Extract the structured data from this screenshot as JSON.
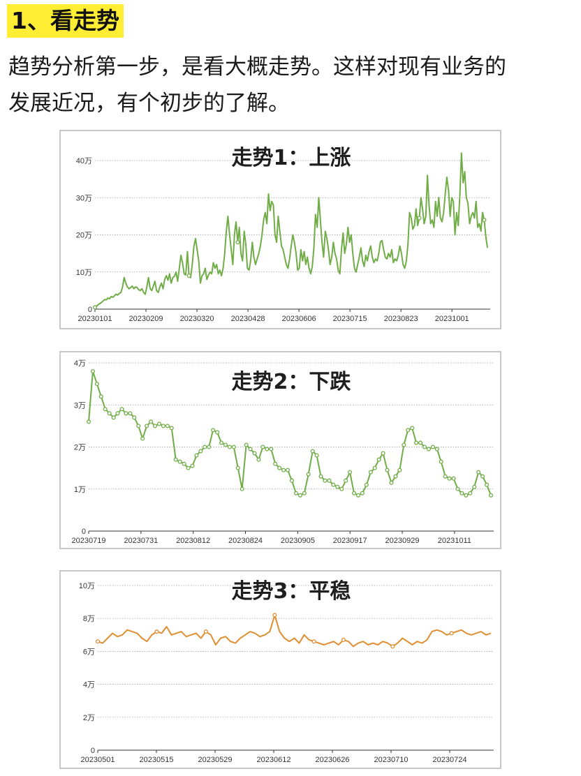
{
  "heading": "1、看走势",
  "intro": {
    "line1": "趋势分析第一步，是看大概走势。这样对现有业务的",
    "line2": "发展近况，有个初步的了解。"
  },
  "chart_data": [
    {
      "type": "line",
      "title": "走势1：上涨",
      "color": "#70ad47",
      "markers": "sparse",
      "ylim": [
        0,
        400000
      ],
      "yticks": [
        0,
        100000,
        200000,
        300000,
        400000
      ],
      "yticklabels": [
        "0",
        "10万",
        "20万",
        "30万",
        "40万"
      ],
      "xticklabels": [
        "20230101",
        "20230209",
        "20230320",
        "20230428",
        "20230606",
        "20230715",
        "20230823",
        "20231001"
      ],
      "grid": true,
      "values": [
        5000,
        8000,
        12000,
        15000,
        18000,
        22000,
        26000,
        25000,
        30000,
        28000,
        34000,
        32000,
        36000,
        40000,
        38000,
        42000,
        45000,
        60000,
        85000,
        70000,
        60000,
        55000,
        58000,
        62000,
        55000,
        60000,
        58000,
        52000,
        50000,
        55000,
        45000,
        40000,
        60000,
        85000,
        55000,
        50000,
        62000,
        75000,
        50000,
        45000,
        60000,
        70000,
        55000,
        80000,
        90000,
        78000,
        95000,
        70000,
        85000,
        88000,
        100000,
        75000,
        110000,
        145000,
        125000,
        95000,
        92000,
        155000,
        90000,
        85000,
        120000,
        170000,
        190000,
        160000,
        130000,
        70000,
        90000,
        95000,
        110000,
        80000,
        92000,
        100000,
        95000,
        125000,
        110000,
        120000,
        95000,
        105000,
        90000,
        110000,
        150000,
        210000,
        250000,
        200000,
        160000,
        120000,
        200000,
        235000,
        180000,
        220000,
        150000,
        130000,
        210000,
        175000,
        110000,
        105000,
        130000,
        180000,
        140000,
        120000,
        135000,
        150000,
        170000,
        200000,
        240000,
        260000,
        230000,
        310000,
        265000,
        290000,
        280000,
        200000,
        180000,
        250000,
        210000,
        170000,
        160000,
        140000,
        120000,
        110000,
        135000,
        170000,
        200000,
        180000,
        150000,
        105000,
        110000,
        160000,
        130000,
        155000,
        120000,
        140000,
        110000,
        95000,
        115000,
        165000,
        255000,
        220000,
        300000,
        240000,
        180000,
        140000,
        210000,
        190000,
        160000,
        120000,
        140000,
        180000,
        150000,
        135000,
        105000,
        95000,
        160000,
        205000,
        150000,
        175000,
        220000,
        180000,
        200000,
        150000,
        110000,
        100000,
        120000,
        140000,
        165000,
        130000,
        115000,
        145000,
        130000,
        155000,
        170000,
        140000,
        125000,
        135000,
        130000,
        150000,
        180000,
        185000,
        160000,
        140000,
        135000,
        150000,
        140000,
        160000,
        125000,
        135000,
        130000,
        145000,
        170000,
        150000,
        120000,
        110000,
        130000,
        175000,
        260000,
        245000,
        215000,
        225000,
        270000,
        225000,
        245000,
        300000,
        270000,
        230000,
        250000,
        360000,
        280000,
        230000,
        240000,
        220000,
        290000,
        250000,
        300000,
        245000,
        235000,
        260000,
        310000,
        355000,
        320000,
        250000,
        300000,
        290000,
        200000,
        260000,
        225000,
        305000,
        420000,
        340000,
        370000,
        300000,
        285000,
        230000,
        250000,
        260000,
        245000,
        290000,
        220000,
        230000,
        210000,
        260000,
        240000,
        195000,
        165000
      ],
      "marker_indices": [
        0,
        58,
        88,
        200,
        240
      ]
    },
    {
      "type": "line",
      "title": "走势2：下跌",
      "color": "#70ad47",
      "markers": "all",
      "ylim": [
        0,
        40000
      ],
      "yticks": [
        0,
        10000,
        20000,
        30000,
        40000
      ],
      "yticklabels": [
        "0",
        "1万",
        "2万",
        "3万",
        "4万"
      ],
      "xticklabels": [
        "20230719",
        "20230731",
        "20230812",
        "20230824",
        "20230905",
        "20230917",
        "20230929",
        "20231011"
      ],
      "grid": true,
      "values": [
        26000,
        38000,
        35000,
        32000,
        29000,
        28000,
        27000,
        28000,
        29000,
        28000,
        28000,
        27000,
        25000,
        22000,
        25000,
        26000,
        25000,
        25500,
        25000,
        25000,
        24500,
        17000,
        16500,
        16000,
        15000,
        15500,
        18000,
        19000,
        20000,
        20000,
        24000,
        23500,
        21000,
        20500,
        20000,
        20000,
        15000,
        10000,
        20500,
        19500,
        18500,
        17000,
        20000,
        19500,
        19500,
        16000,
        15000,
        14500,
        14500,
        12000,
        9000,
        8500,
        9000,
        13500,
        19000,
        18000,
        13000,
        12000,
        12000,
        11000,
        10500,
        10000,
        12000,
        14000,
        9000,
        8500,
        9000,
        11000,
        14000,
        15000,
        17000,
        18500,
        14500,
        11500,
        13000,
        14500,
        20500,
        24000,
        24500,
        21000,
        21000,
        20000,
        19500,
        20000,
        19500,
        16500,
        13000,
        12500,
        12500,
        10000,
        9000,
        8500,
        9000,
        10500,
        14000,
        13000,
        11000,
        8500
      ]
    },
    {
      "type": "line",
      "title": "走势3：平稳",
      "color": "#e08e32",
      "markers": "sparse",
      "ylim": [
        0,
        100000
      ],
      "yticks": [
        0,
        20000,
        40000,
        60000,
        80000,
        100000
      ],
      "yticklabels": [
        "0",
        "2万",
        "4万",
        "6万",
        "8万",
        "10万"
      ],
      "xticklabels": [
        "20230501",
        "20230515",
        "20230529",
        "20230612",
        "20230626",
        "20230710",
        "20230724"
      ],
      "grid": true,
      "values": [
        66000,
        65000,
        68000,
        71000,
        69000,
        70000,
        73000,
        72000,
        71000,
        68000,
        66000,
        70000,
        72000,
        71000,
        75000,
        70000,
        71000,
        72000,
        69000,
        70000,
        71000,
        68000,
        72000,
        70000,
        64000,
        68000,
        69000,
        66000,
        65000,
        68000,
        70000,
        72000,
        71000,
        69000,
        70000,
        72000,
        82000,
        72000,
        68000,
        66000,
        68000,
        65000,
        70000,
        67000,
        66000,
        65000,
        64000,
        65000,
        66000,
        64000,
        67000,
        66000,
        63000,
        65000,
        66000,
        64000,
        65000,
        64000,
        66000,
        65000,
        63000,
        65000,
        68000,
        66000,
        64000,
        66000,
        65000,
        67000,
        72000,
        73000,
        72000,
        70000,
        71000,
        72000,
        73000,
        71000,
        70000,
        71000,
        72000,
        70000,
        71000
      ],
      "marker_indices": [
        0,
        12,
        22,
        36,
        44,
        50,
        60,
        72
      ]
    }
  ]
}
